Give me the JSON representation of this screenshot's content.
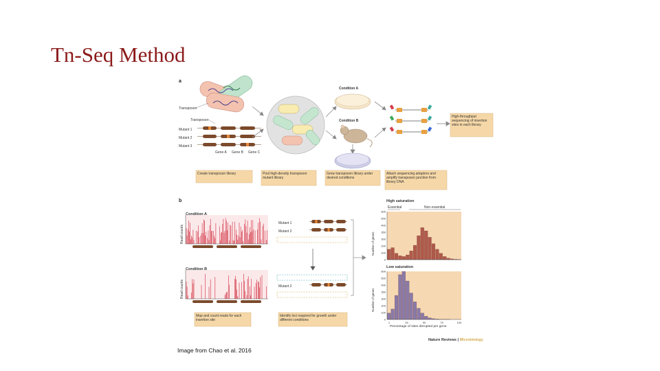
{
  "slide": {
    "title": "Tn-Seq Method",
    "caption": "Image from Chao et al. 2016"
  },
  "panel_a": {
    "label": "a",
    "transposon_labels": [
      "Transposon",
      "Transposon"
    ],
    "mutants": [
      "Mutant 1",
      "Mutant 2",
      "Mutant 3"
    ],
    "genes": [
      "Gene A",
      "Gene B",
      "Gene C"
    ],
    "conditions": [
      "Condition A",
      "Condition B"
    ],
    "sequencing_box": "High-throughput sequencing of insertion sites in each library",
    "steps": [
      "Create transposon library",
      "Pool high-density transposon mutant library",
      "Grow transposon library under desired conditions",
      "Attach sequencing adaptors and amplify transposon junction from library DNA"
    ]
  },
  "panel_b": {
    "label": "b",
    "condition_a": "Condition A",
    "condition_b": "Condition B",
    "ylabel_reads": "Read counts",
    "mutants_a": [
      "Mutant 1",
      "Mutant 2"
    ],
    "mutants_b": [
      "Mutant 2"
    ],
    "steps": [
      "Map and count reads for each insertion site",
      "Identify loci required for growth under different conditions"
    ]
  },
  "histograms": {
    "high_title": "High saturation",
    "essential": "Essential",
    "non_essential": "Non essential",
    "low_title": "Low saturation",
    "ylabel": "Number of genes",
    "xlabel": "Percentage of sites disrupted per gene",
    "yticks": [
      "600",
      "500",
      "400",
      "350",
      "300",
      "200",
      "100",
      "0"
    ],
    "xticks": [
      "1",
      "25",
      "50",
      "75",
      "100"
    ]
  },
  "footer": {
    "journal": "Nature Reviews",
    "separator": " | ",
    "section": "Microbiology"
  },
  "chart_data": [
    {
      "type": "bar",
      "title": "High saturation",
      "xlabel": "Percentage of sites disrupted per gene",
      "ylabel": "Number of genes",
      "ylim": [
        0,
        600
      ],
      "bin_width": 5,
      "values": [
        130,
        150,
        80,
        50,
        40,
        60,
        110,
        180,
        300,
        400,
        360,
        280,
        200,
        130,
        80,
        40,
        20,
        10,
        5,
        3
      ],
      "colors": {
        "bars": "#b05a4a",
        "fill": "#f6d8b3"
      }
    },
    {
      "type": "bar",
      "title": "Low saturation",
      "xlabel": "Percentage of sites disrupted per gene",
      "ylabel": "Number of genes",
      "ylim": [
        0,
        600
      ],
      "bin_width": 5,
      "values": [
        80,
        130,
        300,
        560,
        600,
        480,
        330,
        220,
        140,
        80,
        40,
        20,
        10,
        5,
        3,
        2,
        1,
        0,
        0,
        0
      ],
      "colors": {
        "bars": "#8a7aa8",
        "fill": "#f6d8b3"
      }
    }
  ]
}
